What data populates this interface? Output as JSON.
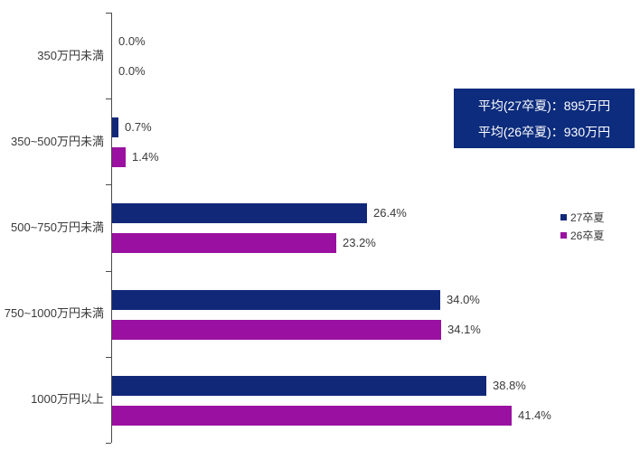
{
  "chart_data": {
    "type": "bar",
    "orientation": "horizontal",
    "title": "",
    "categories": [
      "350万円未満",
      "350~500万円未満",
      "500~750万円未満",
      "750~1000万円未満",
      "1000万円以上"
    ],
    "series": [
      {
        "name": "27卒夏",
        "color": "#112879",
        "values": [
          0.0,
          0.7,
          26.4,
          34.0,
          38.8
        ]
      },
      {
        "name": "26卒夏",
        "color": "#9A10A0",
        "values": [
          0.0,
          1.4,
          23.2,
          34.1,
          41.4
        ]
      }
    ],
    "value_suffix": "%",
    "value_decimals": 1,
    "xlim": [
      0,
      53
    ],
    "grid": false,
    "legend_position": "right",
    "annotation_box": {
      "lines": [
        "平均(27卒夏)：895万円",
        "平均(26卒夏)：930万円"
      ],
      "background": "#0D2C7D",
      "text_color": "#FFFFFF"
    },
    "colors": {
      "axis": "#4a4a4a",
      "label_text": "#3a3a3a",
      "background": "#ffffff"
    }
  },
  "layout_values": {
    "note": "values shown on screen only",
    "data_labels": [
      "0.0%",
      "0.0%",
      "0.7%",
      "1.4%",
      "26.4%",
      "23.2%",
      "34.0%",
      "34.1%",
      "38.8%",
      "41.4%"
    ]
  }
}
